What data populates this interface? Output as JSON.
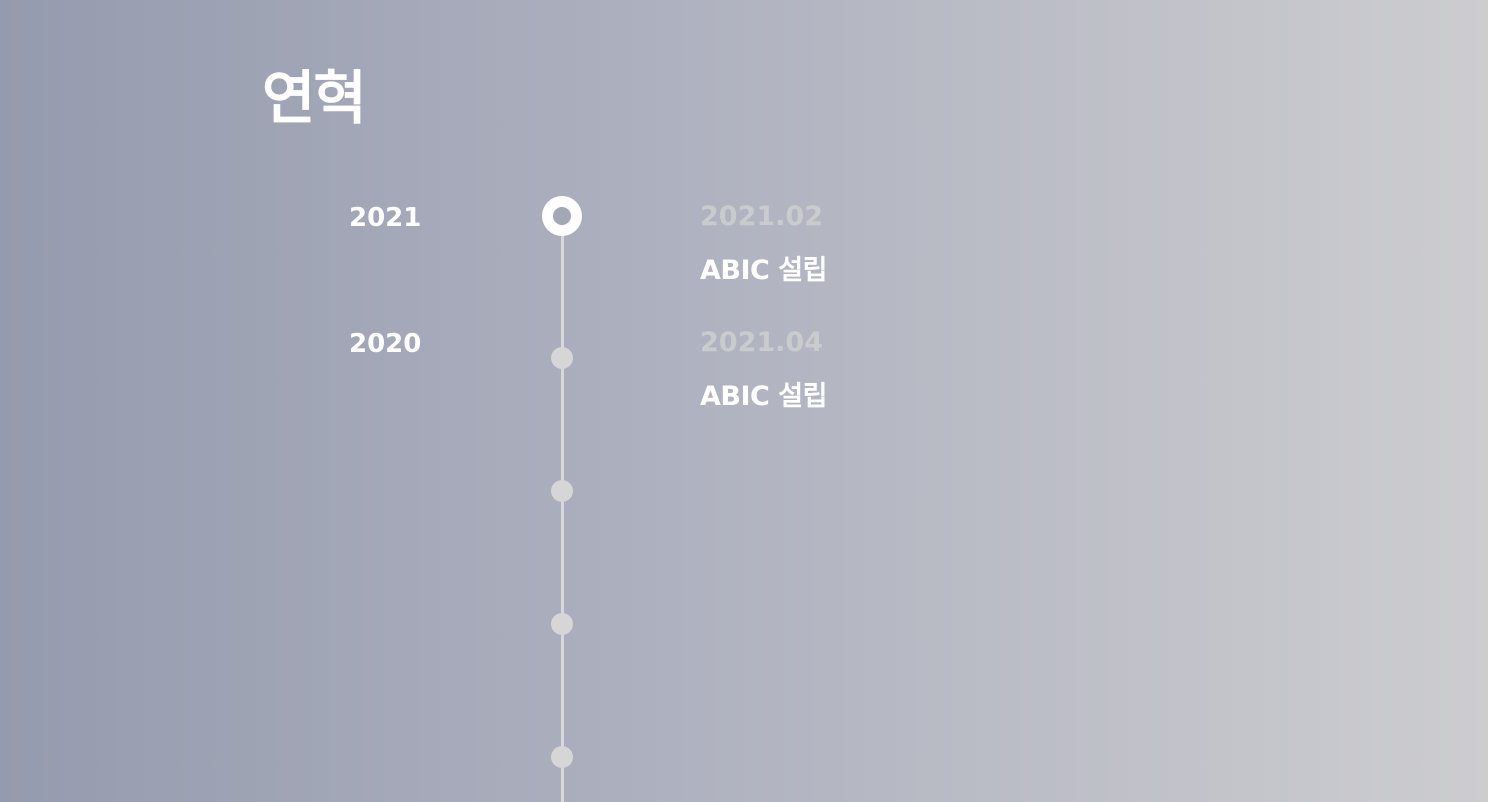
{
  "page": {
    "title": "연혁"
  },
  "years": [
    {
      "label": "2021",
      "active": true
    },
    {
      "label": "2020",
      "active": false
    }
  ],
  "events": [
    {
      "date": "2021.02",
      "title": "ABIC 설립"
    },
    {
      "date": "2021.04",
      "title": "ABIC 설립"
    }
  ],
  "colors": {
    "gradient_left": "#959bae",
    "gradient_right": "#cdcdd0",
    "text_primary": "#ffffff",
    "date_text": "#cacbce",
    "timeline": "#d8d8d8"
  }
}
